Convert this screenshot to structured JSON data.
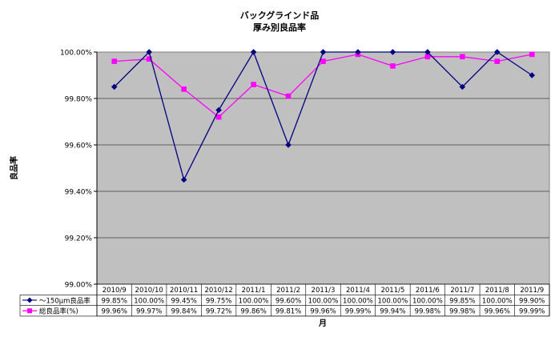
{
  "chart_data": {
    "type": "line",
    "title": "バックグラインド品",
    "subtitle": "厚み別良品率",
    "ylabel": "良品率",
    "xlabel": "月",
    "ylim": [
      99.0,
      100.0
    ],
    "yticks": [
      "99.00%",
      "99.20%",
      "99.40%",
      "99.60%",
      "99.80%",
      "100.00%"
    ],
    "ytick_values": [
      99.0,
      99.2,
      99.4,
      99.6,
      99.8,
      100.0
    ],
    "grid": true,
    "legend_position": "bottom-left (data table keys)",
    "plot_background": "#c0c0c0",
    "categories": [
      "2010/9",
      "2010/10",
      "2010/11",
      "2010/12",
      "2011/1",
      "2011/2",
      "2011/3",
      "2011/4",
      "2011/5",
      "2011/6",
      "2011/7",
      "2011/8",
      "2011/9"
    ],
    "series": [
      {
        "name": "～150μm良品率",
        "color": "#000080",
        "marker": "diamond",
        "values": [
          99.85,
          100.0,
          99.45,
          99.75,
          100.0,
          99.6,
          100.0,
          100.0,
          100.0,
          100.0,
          99.85,
          100.0,
          99.9
        ],
        "labels": [
          "99.85%",
          "100.00%",
          "99.45%",
          "99.75%",
          "100.00%",
          "99.60%",
          "100.00%",
          "100.00%",
          "100.00%",
          "100.00%",
          "99.85%",
          "100.00%",
          "99.90%"
        ]
      },
      {
        "name": "総良品率(%)",
        "color": "#ff00ff",
        "marker": "square",
        "values": [
          99.96,
          99.97,
          99.84,
          99.72,
          99.86,
          99.81,
          99.96,
          99.99,
          99.94,
          99.98,
          99.98,
          99.96,
          99.99
        ],
        "labels": [
          "99.96%",
          "99.97%",
          "99.84%",
          "99.72%",
          "99.86%",
          "99.81%",
          "99.96%",
          "99.99%",
          "99.94%",
          "99.98%",
          "99.98%",
          "99.96%",
          "99.99%"
        ]
      }
    ]
  }
}
